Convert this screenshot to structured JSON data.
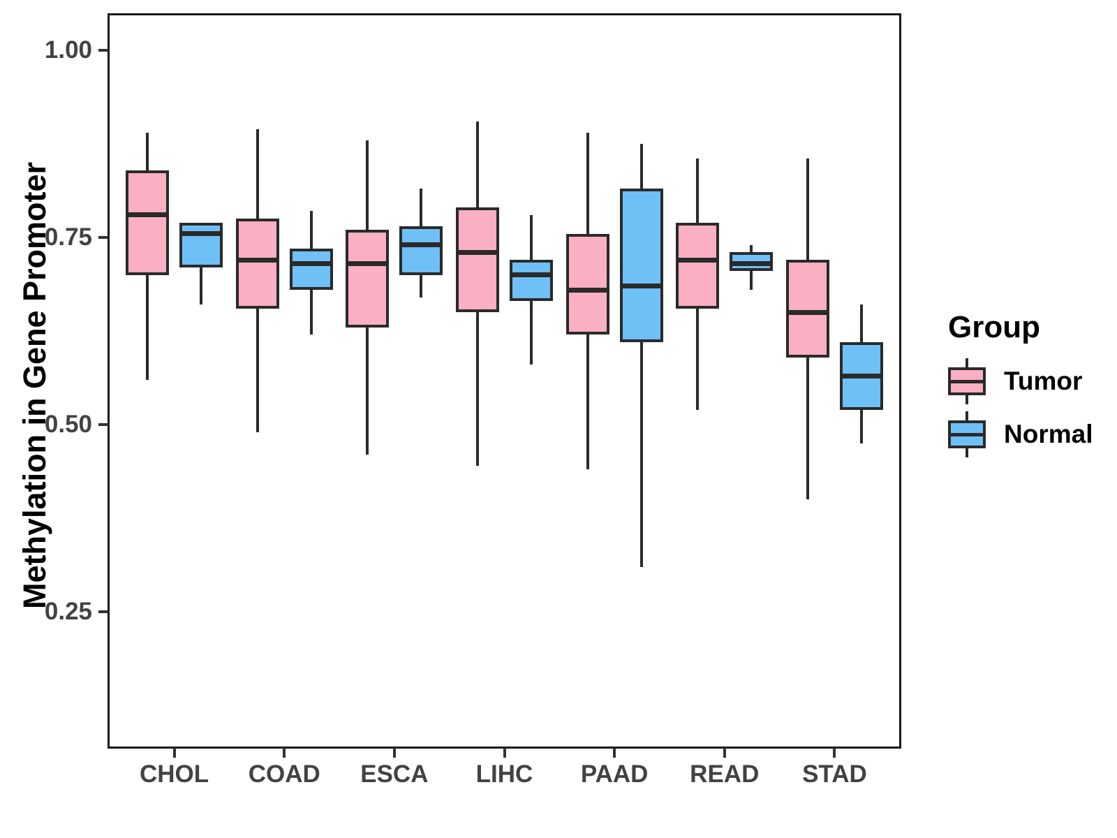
{
  "chart_data": {
    "type": "boxplot",
    "orientation": "vertical",
    "title": "",
    "xlabel": "",
    "ylabel": "Methylation in Gene Promoter",
    "categories": [
      "CHOL",
      "COAD",
      "ESCA",
      "LIHC",
      "PAAD",
      "READ",
      "STAD"
    ],
    "y_axis": {
      "ticks": [
        1.0,
        0.75,
        0.5,
        0.25
      ],
      "tick_labels": [
        "1.00",
        "0.75",
        "0.50",
        "0.25"
      ],
      "range_shown": [
        0.07,
        1.05
      ],
      "grid": "off"
    },
    "series": [
      {
        "name": "Tumor",
        "color": "#FAAFC2",
        "boxes": [
          {
            "category": "CHOL",
            "low": 0.56,
            "q1": 0.7,
            "median": 0.78,
            "q3": 0.84,
            "high": 0.89
          },
          {
            "category": "COAD",
            "low": 0.49,
            "q1": 0.655,
            "median": 0.72,
            "q3": 0.775,
            "high": 0.895
          },
          {
            "category": "ESCA",
            "low": 0.46,
            "q1": 0.63,
            "median": 0.715,
            "q3": 0.76,
            "high": 0.88
          },
          {
            "category": "LIHC",
            "low": 0.445,
            "q1": 0.65,
            "median": 0.73,
            "q3": 0.79,
            "high": 0.905
          },
          {
            "category": "PAAD",
            "low": 0.44,
            "q1": 0.62,
            "median": 0.68,
            "q3": 0.755,
            "high": 0.89
          },
          {
            "category": "READ",
            "low": 0.52,
            "q1": 0.655,
            "median": 0.72,
            "q3": 0.77,
            "high": 0.855
          },
          {
            "category": "STAD",
            "low": 0.4,
            "q1": 0.59,
            "median": 0.65,
            "q3": 0.72,
            "high": 0.855
          }
        ]
      },
      {
        "name": "Normal",
        "color": "#70C0F8",
        "boxes": [
          {
            "category": "CHOL",
            "low": 0.66,
            "q1": 0.71,
            "median": 0.755,
            "q3": 0.77,
            "high": 0.77
          },
          {
            "category": "COAD",
            "low": 0.62,
            "q1": 0.68,
            "median": 0.715,
            "q3": 0.735,
            "high": 0.785
          },
          {
            "category": "ESCA",
            "low": 0.67,
            "q1": 0.7,
            "median": 0.74,
            "q3": 0.765,
            "high": 0.815
          },
          {
            "category": "LIHC",
            "low": 0.58,
            "q1": 0.665,
            "median": 0.7,
            "q3": 0.72,
            "high": 0.78
          },
          {
            "category": "PAAD",
            "low": 0.31,
            "q1": 0.61,
            "median": 0.685,
            "q3": 0.815,
            "high": 0.875
          },
          {
            "category": "READ",
            "low": 0.68,
            "q1": 0.705,
            "median": 0.715,
            "q3": 0.73,
            "high": 0.74
          },
          {
            "category": "STAD",
            "low": 0.475,
            "q1": 0.52,
            "median": 0.565,
            "q3": 0.61,
            "high": 0.66
          }
        ]
      }
    ],
    "legend": {
      "title": "Group",
      "position": "right",
      "entries": [
        {
          "label": "Tumor",
          "color": "#FAAFC2"
        },
        {
          "label": "Normal",
          "color": "#70C0F8"
        }
      ]
    },
    "styles": {
      "box_line_color": "#2A2A2A",
      "panel_border_color": "#1A1A1A",
      "axis_text_color": "#424242",
      "axis_title_color": "#000000",
      "tick_color": "#333333",
      "background": "#FFFFFF"
    }
  }
}
